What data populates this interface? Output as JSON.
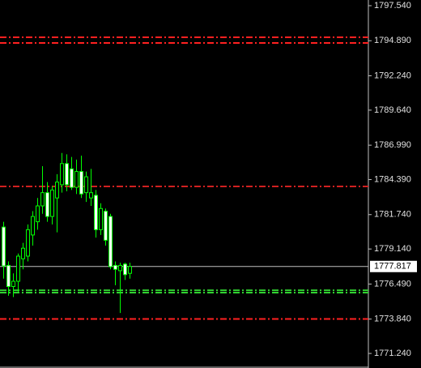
{
  "chart_data": {
    "type": "candlestick",
    "open": [
      1780.8,
      1777.9,
      1776.3,
      1776.7,
      1778.4,
      1778.6,
      1780.2,
      1781.2,
      1782.4,
      1783.4,
      1781.6,
      1783.0,
      1784.0,
      1785.6,
      1785.2,
      1783.8,
      1785.0,
      1783.4,
      1783.0,
      1783.2,
      1780.6,
      1782.0,
      1781.6,
      1777.9,
      1777.5,
      1778.0,
      1777.3
    ],
    "high": [
      1781.2,
      1778.2,
      1777.3,
      1778.8,
      1779.6,
      1781.0,
      1782.0,
      1783.0,
      1785.4,
      1784.2,
      1783.9,
      1784.8,
      1786.4,
      1786.3,
      1786.1,
      1785.9,
      1786.2,
      1785.0,
      1785.2,
      1783.6,
      1782.6,
      1782.2,
      1781.8,
      1778.2,
      1778.1,
      1778.1,
      1778.1
    ],
    "low": [
      1776.9,
      1775.6,
      1775.5,
      1775.9,
      1777.6,
      1778.2,
      1779.4,
      1780.6,
      1781.8,
      1781.2,
      1781.0,
      1780.4,
      1783.4,
      1783.5,
      1783.6,
      1783.3,
      1783.0,
      1782.7,
      1782.4,
      1780.0,
      1780.2,
      1779.4,
      1777.6,
      1776.4,
      1774.3,
      1776.8,
      1776.9
    ],
    "close": [
      1777.86,
      1776.3,
      1776.7,
      1778.6,
      1779.2,
      1780.6,
      1781.6,
      1782.4,
      1783.4,
      1781.6,
      1783.6,
      1784.2,
      1785.6,
      1784.0,
      1783.8,
      1785.0,
      1783.3,
      1784.6,
      1783.4,
      1780.6,
      1782.2,
      1779.8,
      1777.8,
      1777.6,
      1777.9,
      1777.2,
      1777.817
    ],
    "bull_color": "#000000",
    "bear_color": "#ffffff",
    "wick_color": "#00ff00",
    "ylim": [
      1770.14,
      1797.97
    ],
    "yticks": [
      {
        "value": 1797.54,
        "label": "1797.540"
      },
      {
        "value": 1794.89,
        "label": "1794.890"
      },
      {
        "value": 1792.24,
        "label": "1792.240"
      },
      {
        "value": 1789.64,
        "label": "1789.640"
      },
      {
        "value": 1786.99,
        "label": "1786.990"
      },
      {
        "value": 1784.39,
        "label": "1784.390"
      },
      {
        "value": 1781.74,
        "label": "1781.740"
      },
      {
        "value": 1779.14,
        "label": "1779.140"
      },
      {
        "value": 1776.49,
        "label": "1776.490"
      },
      {
        "value": 1773.84,
        "label": "1773.840"
      },
      {
        "value": 1771.24,
        "label": "1771.240"
      }
    ],
    "levels": [
      {
        "value": 1795.15,
        "color": "#ff2020"
      },
      {
        "value": 1794.72,
        "color": "#ff2020"
      },
      {
        "value": 1783.87,
        "color": "#d02020"
      },
      {
        "value": 1776.02,
        "color": "#30d030"
      },
      {
        "value": 1775.84,
        "color": "#30d030"
      },
      {
        "value": 1773.85,
        "color": "#ff2020"
      }
    ],
    "current_price": {
      "value": 1777.817,
      "label": "1777.817",
      "color": "#c0c0c0"
    }
  }
}
